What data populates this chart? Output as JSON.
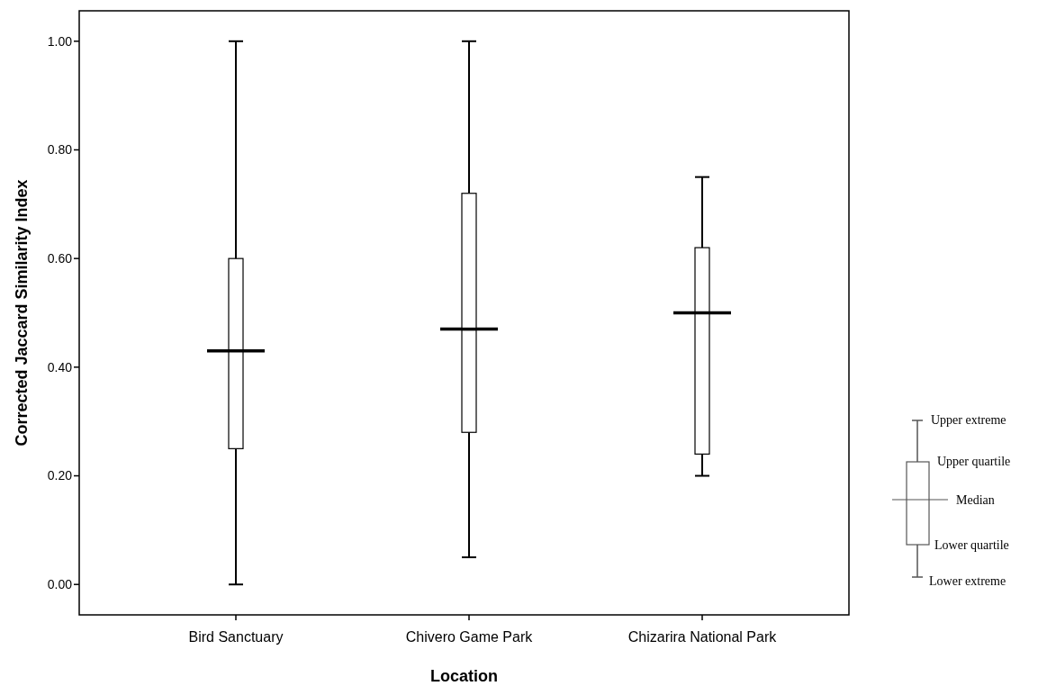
{
  "chart_data": {
    "type": "box",
    "xlabel": "Location",
    "ylabel": "Corrected Jaccard Similarity Index",
    "categories": [
      "Bird Sanctuary",
      "Chivero Game Park",
      "Chizarira National Park"
    ],
    "boxes": [
      {
        "low": 0,
        "q1": 0.25,
        "median": 0.43,
        "q3": 0.6,
        "high": 1
      },
      {
        "low": 0.05,
        "q1": 0.28,
        "median": 0.47,
        "q3": 0.72,
        "high": 1
      },
      {
        "low": 0.2,
        "q1": 0.24,
        "median": 0.5,
        "q3": 0.62,
        "high": 0.75
      }
    ],
    "ylim": [
      -0.056,
      1.056
    ],
    "yticks": [
      {
        "value": 0,
        "label": "0.00"
      },
      {
        "value": 0.2,
        "label": "0.20"
      },
      {
        "value": 0.4,
        "label": "0.40"
      },
      {
        "value": 0.6,
        "label": "0.60"
      },
      {
        "value": 0.8,
        "label": "0.80"
      },
      {
        "value": 1,
        "label": "1.00"
      }
    ],
    "grid": false,
    "annotations": [
      "Upper extreme",
      "Upper quartile",
      "Median",
      "Lower quartile",
      "Lower extreme"
    ]
  }
}
